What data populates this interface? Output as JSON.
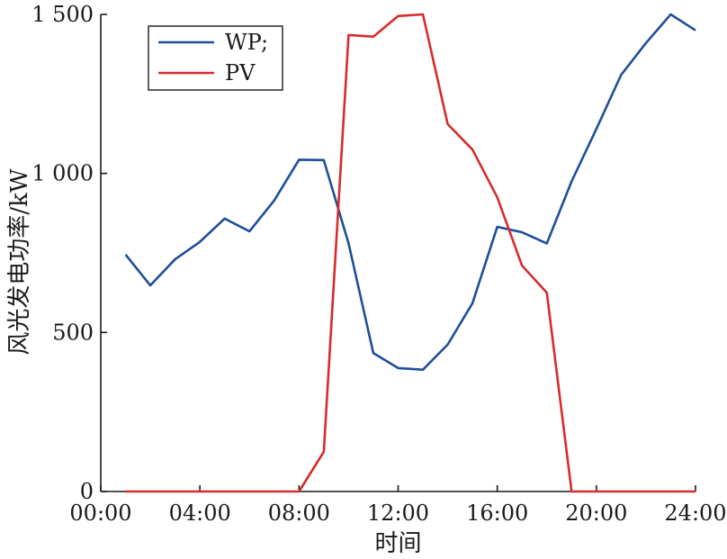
{
  "chart_data": {
    "type": "line",
    "title": "",
    "xlabel": "时间",
    "ylabel": "风光发电功率/kW",
    "x_ticks": [
      "00:00",
      "04:00",
      "08:00",
      "12:00",
      "16:00",
      "20:00",
      "24:00"
    ],
    "x_tick_values": [
      0,
      4,
      8,
      12,
      16,
      20,
      24
    ],
    "y_ticks": [
      "0",
      "500",
      "1 000",
      "1 500"
    ],
    "y_tick_values": [
      0,
      500,
      1000,
      1500
    ],
    "xlim": [
      0,
      24
    ],
    "ylim": [
      0,
      1500
    ],
    "grid": false,
    "legend_position": "top-left",
    "x": [
      1,
      2,
      3,
      4,
      5,
      6,
      7,
      8,
      9,
      10,
      11,
      12,
      13,
      14,
      15,
      16,
      17,
      18,
      19,
      20,
      21,
      22,
      23,
      24
    ],
    "series": [
      {
        "name": "WP;",
        "color": "#1f4e9a",
        "values": [
          745,
          648,
          730,
          785,
          858,
          818,
          915,
          1043,
          1042,
          780,
          435,
          388,
          383,
          462,
          592,
          832,
          815,
          780,
          975,
          1140,
          1310,
          1410,
          1500,
          1450
        ]
      },
      {
        "name": "PV",
        "color": "#d62c2c",
        "values": [
          0,
          0,
          0,
          0,
          0,
          0,
          0,
          0,
          125,
          1435,
          1430,
          1495,
          1500,
          1155,
          1075,
          925,
          710,
          625,
          0,
          0,
          0,
          0,
          0,
          0
        ]
      }
    ]
  }
}
